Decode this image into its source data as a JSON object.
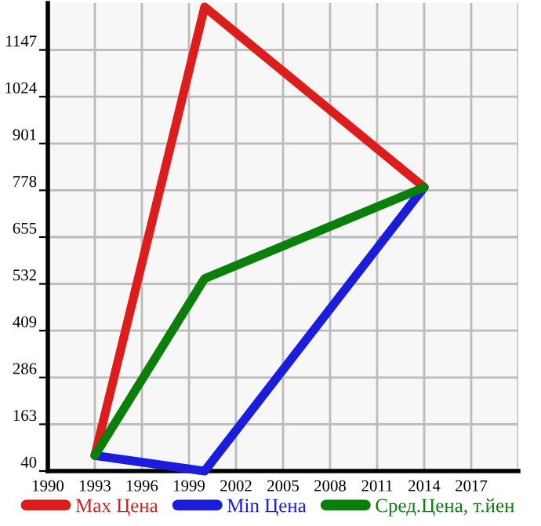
{
  "chart_data": {
    "type": "line",
    "x": [
      1993,
      2000,
      2014
    ],
    "series": [
      {
        "name": "Max Цена",
        "color": "#dd1c1c",
        "values": [
          81,
          1260,
          786
        ]
      },
      {
        "name": "Min Цена",
        "color": "#1c1cdd",
        "values": [
          81,
          40,
          786
        ]
      },
      {
        "name": "Сред.Цена, т.йен",
        "color": "#0a800a",
        "values": [
          81,
          546,
          786
        ]
      }
    ],
    "xlim": [
      1990,
      2020
    ],
    "xticks": [
      1990,
      1993,
      1996,
      1999,
      2002,
      2005,
      2008,
      2011,
      2014,
      2017
    ],
    "ylim": [
      40,
      1270
    ],
    "yticks": [
      40,
      163,
      286,
      409,
      532,
      655,
      778,
      901,
      1024,
      1147
    ],
    "grid": true,
    "legend": "bottom",
    "marker": "none",
    "line_style": "solid"
  }
}
